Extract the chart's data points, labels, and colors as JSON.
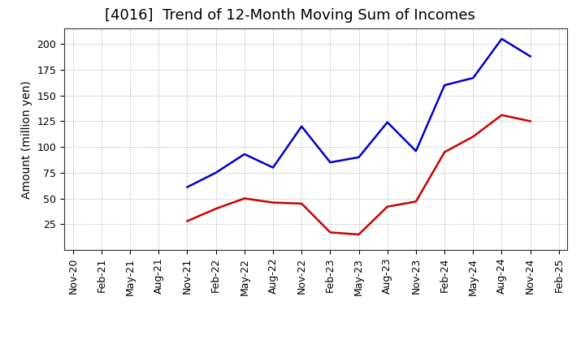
{
  "title": "[4016]  Trend of 12-Month Moving Sum of Incomes",
  "ylabel": "Amount (million yen)",
  "x_labels": [
    "Nov-20",
    "Feb-21",
    "May-21",
    "Aug-21",
    "Nov-21",
    "Feb-22",
    "May-22",
    "Aug-22",
    "Nov-22",
    "Feb-23",
    "May-23",
    "Aug-23",
    "Nov-23",
    "Feb-24",
    "May-24",
    "Aug-24",
    "Nov-24",
    "Feb-25"
  ],
  "ordinary_income": [
    null,
    null,
    null,
    null,
    61,
    75,
    93,
    80,
    120,
    85,
    90,
    124,
    96,
    160,
    167,
    205,
    188,
    null
  ],
  "net_income": [
    null,
    null,
    null,
    null,
    28,
    40,
    50,
    46,
    45,
    17,
    15,
    42,
    47,
    95,
    110,
    131,
    125,
    null
  ],
  "ylim": [
    0,
    215
  ],
  "yticks": [
    25,
    50,
    75,
    100,
    125,
    150,
    175,
    200
  ],
  "ordinary_color": "#0000cc",
  "net_color": "#cc0000",
  "background_color": "#ffffff",
  "grid_color": "#aaaaaa",
  "title_fontsize": 13,
  "axis_label_fontsize": 10,
  "tick_fontsize": 9,
  "legend_fontsize": 10
}
